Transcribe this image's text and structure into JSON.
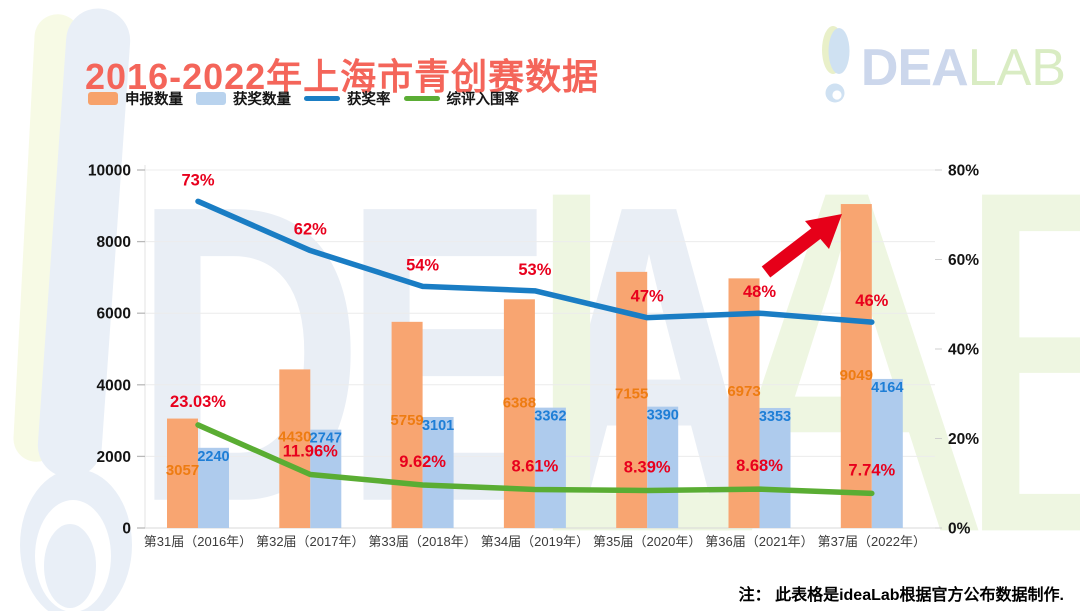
{
  "title": "2016-2022年上海市青创赛数据",
  "note": "注： 此表格是ideaLab根据官方公布数据制作.",
  "logo": {
    "dea": "DEA",
    "lab": "LAB"
  },
  "watermark": {
    "left": "DEA",
    "right": "LAB"
  },
  "colors": {
    "title": "#f4655a",
    "apply_bar": "#f8a571",
    "award_bar": "#aecbed",
    "rate_line": "#1a7dc4",
    "final_line": "#5aad33",
    "percent_label": "#e8001d",
    "apply_label": "#ee7c12",
    "award_label": "#1e7ed6",
    "arrow": "#e60019"
  },
  "legend": [
    {
      "label": "申报数量",
      "type": "bar",
      "color": "#f7a26b"
    },
    {
      "label": "获奖数量",
      "type": "bar",
      "color": "#b9d3ee"
    },
    {
      "label": "获奖率",
      "type": "line",
      "color": "#1b7ec4"
    },
    {
      "label": "综评入围率",
      "type": "line",
      "color": "#5bad35"
    }
  ],
  "chart_data": {
    "type": "bar+line combo",
    "categories": [
      "第31届（2016年）",
      "第32届（2017年）",
      "第33届（2018年）",
      "第34届（2019年）",
      "第35届（2020年）",
      "第36届（2021年）",
      "第37届（2022年）"
    ],
    "series": [
      {
        "name": "申报数量",
        "type": "bar",
        "axis": "left",
        "color": "#f8a571",
        "label_color": "#ee7c12",
        "values": [
          3057,
          4430,
          5759,
          6388,
          7155,
          6973,
          9049
        ]
      },
      {
        "name": "获奖数量",
        "type": "bar",
        "axis": "left",
        "color": "#aecbed",
        "label_color": "#1e7ed6",
        "values": [
          2240,
          2747,
          3101,
          3362,
          3390,
          3353,
          4164
        ]
      },
      {
        "name": "获奖率",
        "type": "line",
        "axis": "right",
        "color": "#1a7dc4",
        "label_color": "#e8001d",
        "values": [
          73,
          62,
          54,
          53,
          47,
          48,
          46
        ],
        "labels": [
          "73%",
          "62%",
          "54%",
          "53%",
          "47%",
          "48%",
          "46%"
        ]
      },
      {
        "name": "综评入围率",
        "type": "line",
        "axis": "right",
        "color": "#5aad33",
        "label_color": "#e8001d",
        "values": [
          23.03,
          11.96,
          9.62,
          8.61,
          8.39,
          8.68,
          7.74
        ],
        "labels": [
          "23.03%",
          "11.96%",
          "9.62%",
          "8.61%",
          "8.39%",
          "8.68%",
          "7.74%"
        ]
      }
    ],
    "left_axis": {
      "min": 0,
      "max": 10000,
      "tick_values": [
        0,
        2000,
        4000,
        6000,
        8000,
        10000
      ],
      "tick_labels": [
        "0",
        "2000",
        "4000",
        "6000",
        "8000",
        "10000"
      ]
    },
    "right_axis": {
      "min": 0,
      "max": 80,
      "tick_values": [
        0,
        20,
        40,
        60,
        80
      ],
      "tick_labels": [
        "0%",
        "20%",
        "40%",
        "60%",
        "80%"
      ]
    },
    "grid": true,
    "legend_position": "top-left",
    "annotations": [
      {
        "type": "arrow",
        "color": "#e60019",
        "target": "第37届 申报数量 9049"
      }
    ]
  }
}
